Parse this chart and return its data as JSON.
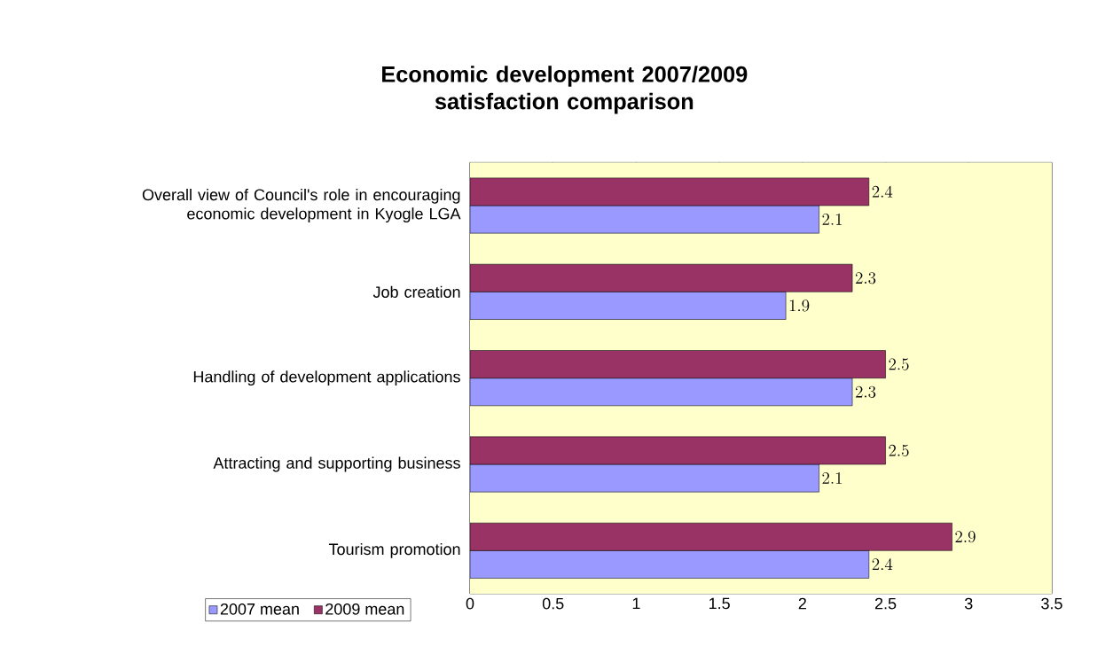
{
  "chart_data": {
    "type": "bar",
    "orientation": "horizontal",
    "title": "Economic development 2007/2009 satisfaction comparison",
    "categories": [
      "Overall view of Council's role in encouraging economic development in Kyogle LGA",
      "Job creation",
      "Handling of development applications",
      "Attracting and supporting business",
      "Tourism promotion"
    ],
    "series": [
      {
        "name": "2007 mean",
        "color": "#9999ff",
        "values": [
          2.1,
          1.9,
          2.3,
          2.1,
          2.4
        ]
      },
      {
        "name": "2009 mean",
        "color": "#993366",
        "values": [
          2.4,
          2.3,
          2.5,
          2.5,
          2.9
        ]
      }
    ],
    "xlim": [
      0,
      3.5
    ],
    "xticks": [
      0,
      0.5,
      1,
      1.5,
      2,
      2.5,
      3,
      3.5
    ],
    "grid": "x",
    "legend": "bottom left",
    "data_labels": true
  }
}
